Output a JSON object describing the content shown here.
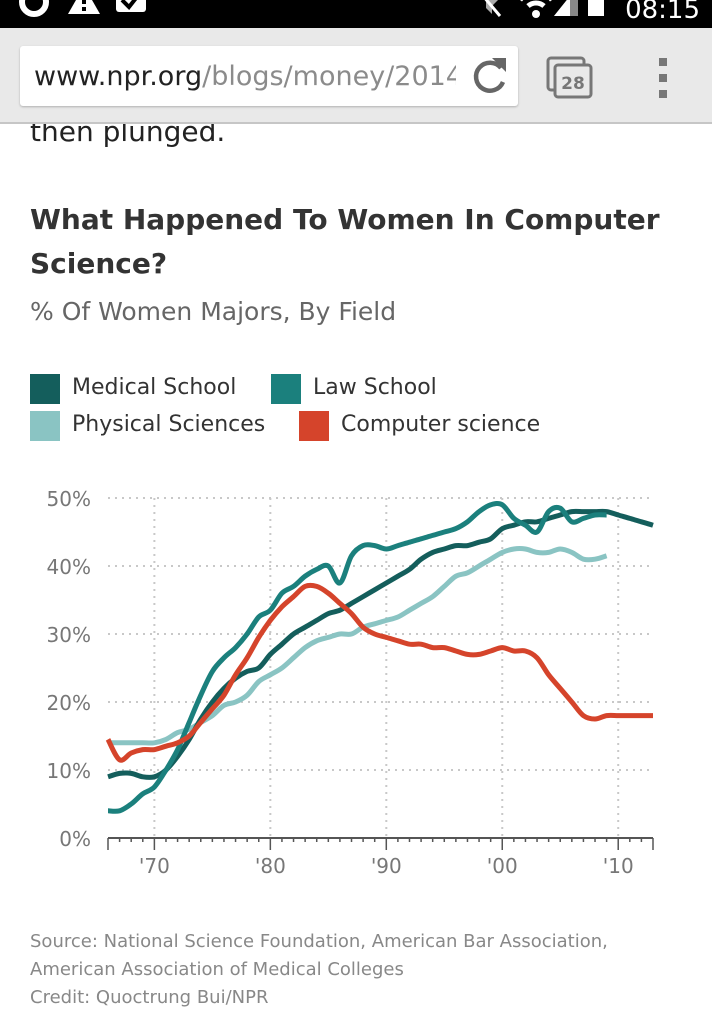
{
  "status_bar": {
    "time": "08:15"
  },
  "browser": {
    "url_domain": "www.npr.org",
    "url_path": "/blogs/money/2014",
    "tab_count": "28"
  },
  "article": {
    "previous_text": "then plunged."
  },
  "colors": {
    "medical": "#145e5c",
    "law": "#1b807d",
    "physical": "#8ac4c3",
    "cs": "#d5442b"
  },
  "chart_data": {
    "type": "line",
    "title": "What Happened To Women In Computer Science?",
    "subtitle": "% Of Women Majors, By Field",
    "xlabel": "",
    "ylabel": "",
    "xlim": [
      1966,
      2013
    ],
    "ylim": [
      0,
      50
    ],
    "x_ticks": [
      1970,
      1980,
      1990,
      2000,
      2010
    ],
    "x_tick_labels": [
      "'70",
      "'80",
      "'90",
      "'00",
      "'10"
    ],
    "y_ticks": [
      0,
      10,
      20,
      30,
      40,
      50
    ],
    "y_tick_labels": [
      "0%",
      "10%",
      "20%",
      "30%",
      "40%",
      "50%"
    ],
    "grid": true,
    "legend": [
      {
        "key": "medical",
        "label": "Medical School"
      },
      {
        "key": "law",
        "label": "Law School"
      },
      {
        "key": "physical",
        "label": "Physical Sciences"
      },
      {
        "key": "cs",
        "label": "Computer science"
      }
    ],
    "series": [
      {
        "key": "physical",
        "name": "Physical Sciences",
        "x": [
          1966,
          1967,
          1968,
          1969,
          1970,
          1971,
          1972,
          1973,
          1974,
          1975,
          1976,
          1977,
          1978,
          1979,
          1980,
          1981,
          1982,
          1983,
          1984,
          1985,
          1986,
          1987,
          1988,
          1989,
          1990,
          1991,
          1992,
          1993,
          1994,
          1995,
          1996,
          1997,
          1998,
          1999,
          2000,
          2001,
          2002,
          2003,
          2004,
          2005,
          2006,
          2007,
          2008,
          2009
        ],
        "y": [
          14,
          14,
          14,
          14,
          14,
          14.5,
          15.5,
          16,
          17,
          18,
          19.5,
          20,
          21,
          23,
          24,
          25,
          26.5,
          28,
          29,
          29.5,
          30,
          30,
          31,
          31.5,
          32,
          32.5,
          33.5,
          34.5,
          35.5,
          37,
          38.5,
          39,
          40,
          41,
          42,
          42.5,
          42.5,
          42,
          42,
          42.5,
          42,
          41,
          41,
          41.5
        ]
      },
      {
        "key": "medical",
        "name": "Medical School",
        "x": [
          1966,
          1967,
          1968,
          1969,
          1970,
          1971,
          1972,
          1973,
          1974,
          1975,
          1976,
          1977,
          1978,
          1979,
          1980,
          1981,
          1982,
          1983,
          1984,
          1985,
          1986,
          1987,
          1988,
          1989,
          1990,
          1991,
          1992,
          1993,
          1994,
          1995,
          1996,
          1997,
          1998,
          1999,
          2000,
          2001,
          2002,
          2003,
          2004,
          2005,
          2006,
          2007,
          2008,
          2009,
          2010,
          2011,
          2012,
          2013
        ],
        "y": [
          9,
          9.5,
          9.5,
          9,
          9,
          10,
          12,
          14.5,
          17.5,
          20,
          22,
          23.5,
          24.5,
          25,
          27,
          28.5,
          30,
          31,
          32,
          33,
          33.5,
          34.5,
          35.5,
          36.5,
          37.5,
          38.5,
          39.5,
          41,
          42,
          42.5,
          43,
          43,
          43.5,
          44,
          45.5,
          46,
          46.5,
          46.5,
          47,
          47.5,
          48,
          48,
          48,
          48,
          47.5,
          47,
          46.5,
          46
        ]
      },
      {
        "key": "law",
        "name": "Law School",
        "x": [
          1966,
          1967,
          1968,
          1969,
          1970,
          1971,
          1972,
          1973,
          1974,
          1975,
          1976,
          1977,
          1978,
          1979,
          1980,
          1981,
          1982,
          1983,
          1984,
          1985,
          1986,
          1987,
          1988,
          1989,
          1990,
          1991,
          1992,
          1993,
          1994,
          1995,
          1996,
          1997,
          1998,
          1999,
          2000,
          2001,
          2002,
          2003,
          2004,
          2005,
          2006,
          2007,
          2008,
          2009
        ],
        "y": [
          4,
          4,
          5,
          6.5,
          7.5,
          10,
          13,
          17,
          21,
          24.5,
          26.5,
          28,
          30,
          32.5,
          33.5,
          36,
          37,
          38.5,
          39.5,
          40,
          37.5,
          41.5,
          43,
          43,
          42.5,
          43,
          43.5,
          44,
          44.5,
          45,
          45.5,
          46.5,
          48,
          49,
          49,
          47,
          46,
          45,
          48,
          48.5,
          46.5,
          47,
          47.5,
          47.5
        ]
      },
      {
        "key": "cs",
        "name": "Computer science",
        "x": [
          1966,
          1967,
          1968,
          1969,
          1970,
          1971,
          1972,
          1973,
          1974,
          1975,
          1976,
          1977,
          1978,
          1979,
          1980,
          1981,
          1982,
          1983,
          1984,
          1985,
          1986,
          1987,
          1988,
          1989,
          1990,
          1991,
          1992,
          1993,
          1994,
          1995,
          1996,
          1997,
          1998,
          1999,
          2000,
          2001,
          2002,
          2003,
          2004,
          2005,
          2006,
          2007,
          2008,
          2009,
          2010,
          2011,
          2012,
          2013
        ],
        "y": [
          14.5,
          11.5,
          12.5,
          13,
          13,
          13.5,
          14,
          15,
          17,
          19,
          21,
          24,
          26.5,
          29.5,
          32,
          34,
          35.5,
          37,
          37,
          36,
          34.5,
          33,
          31,
          30,
          29.5,
          29,
          28.5,
          28.5,
          28,
          28,
          27.5,
          27,
          27,
          27.5,
          28,
          27.5,
          27.5,
          26.5,
          24,
          22,
          20,
          18,
          17.5,
          18,
          18,
          18,
          18,
          18
        ]
      }
    ]
  },
  "footer": {
    "source_line1": "Source: National Science Foundation, American Bar Association,",
    "source_line2": "American Association of Medical Colleges",
    "credit": "Credit: Quoctrung Bui/NPR"
  }
}
